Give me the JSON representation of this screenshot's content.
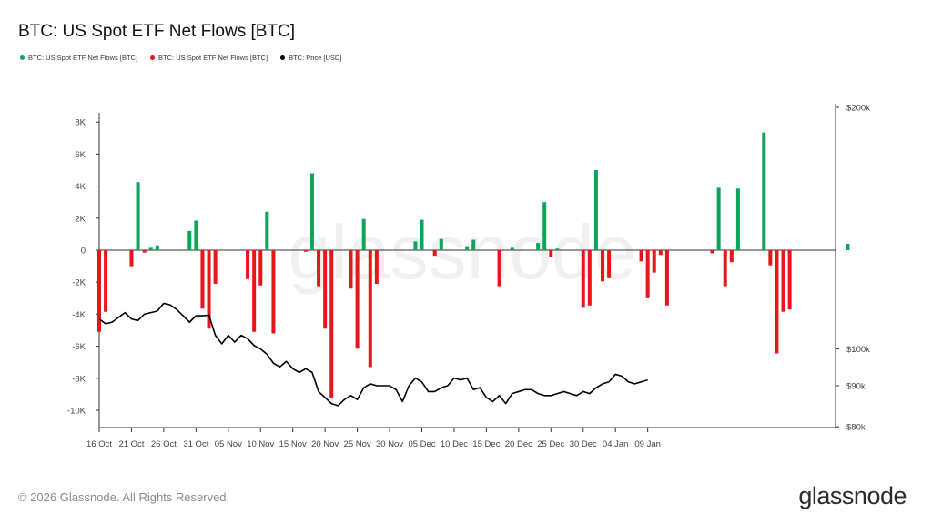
{
  "title": "BTC: US Spot ETF Net Flows [BTC]",
  "legend": [
    {
      "label": "BTC: US Spot ETF Net Flows [BTC]",
      "color": "#0fa35b"
    },
    {
      "label": "BTC: US Spot ETF Net Flows [BTC]",
      "color": "#e8161a"
    },
    {
      "label": "BTC: Price [USD]",
      "color": "#000000"
    }
  ],
  "footer": {
    "copyright": "© 2026 Glassnode. All Rights Reserved.",
    "brand": "glassnode"
  },
  "watermark": "glassnode",
  "colors": {
    "positive": "#0fa35b",
    "negative": "#e8161a",
    "price": "#000000",
    "axis": "#333333"
  },
  "chart_data": {
    "type": "bar",
    "title": "BTC: US Spot ETF Net Flows [BTC]",
    "x_ticks": [
      "16 Oct",
      "21 Oct",
      "26 Oct",
      "31 Oct",
      "05 Nov",
      "10 Nov",
      "15 Nov",
      "20 Nov",
      "25 Nov",
      "30 Nov",
      "05 Dec",
      "10 Dec",
      "15 Dec",
      "20 Dec",
      "25 Dec",
      "30 Dec",
      "04 Jan",
      "09 Jan"
    ],
    "y_left": {
      "ticks": [
        -10000,
        -8000,
        -6000,
        -4000,
        -2000,
        0,
        2000,
        4000,
        6000,
        8000
      ],
      "tick_labels": [
        "-10K",
        "-8K",
        "-6K",
        "-4K",
        "-2K",
        "0",
        "2K",
        "4K",
        "6K",
        "8K"
      ],
      "range": [
        -10500,
        8500
      ]
    },
    "y_right": {
      "scale": "log",
      "ticks": [
        80000,
        90000,
        100000,
        200000
      ],
      "tick_labels": [
        "$80k",
        "$90k",
        "$100k",
        "$200k"
      ],
      "range": [
        80000,
        200000
      ]
    },
    "flows_start_day": 0,
    "flows": [
      -5100,
      -3850,
      null,
      null,
      null,
      -1000,
      4250,
      -150,
      150,
      300,
      null,
      null,
      null,
      null,
      1200,
      1850,
      -3650,
      -4900,
      -2100,
      null,
      null,
      null,
      null,
      -1800,
      -5100,
      -2200,
      2400,
      -5200,
      null,
      null,
      null,
      null,
      -100,
      4800,
      -2250,
      -4900,
      -9200,
      null,
      null,
      -2400,
      -6150,
      1950,
      -7300,
      -2100,
      null,
      null,
      null,
      null,
      null,
      550,
      1900,
      null,
      -350,
      700,
      null,
      null,
      null,
      250,
      650,
      null,
      null,
      null,
      -2250,
      null,
      150,
      null,
      null,
      null,
      450,
      3000,
      -400,
      100,
      null,
      null,
      null,
      -3600,
      -3450,
      5000,
      -1950,
      -1750,
      null,
      null,
      null,
      null,
      -700,
      -3000,
      -1400,
      -300,
      -3450,
      null,
      null,
      null,
      null,
      null,
      null,
      -200,
      3900,
      -2250,
      -750,
      3850,
      null,
      null,
      null,
      7350,
      -950,
      -6450,
      -3850,
      -3700,
      null,
      null,
      null,
      null,
      null,
      null,
      null,
      null,
      400
    ],
    "price_start_day": 0,
    "price": [
      109000,
      107500,
      108000,
      109500,
      111000,
      109000,
      108500,
      110500,
      111000,
      111500,
      114000,
      113500,
      112000,
      110000,
      108000,
      110000,
      110000,
      110200,
      104000,
      101500,
      104000,
      102000,
      104000,
      103000,
      101000,
      100000,
      98500,
      96000,
      95000,
      96500,
      94500,
      93500,
      94500,
      93500,
      88500,
      87000,
      85500,
      85000,
      86500,
      87500,
      86500,
      89500,
      90500,
      90000,
      90000,
      90000,
      89000,
      86000,
      90000,
      92000,
      91000,
      88500,
      88500,
      89500,
      90000,
      92000,
      91500,
      92000,
      89000,
      89500,
      87000,
      86000,
      87500,
      85500,
      88000,
      88500,
      89000,
      89000,
      88000,
      87500,
      87500,
      88000,
      88500,
      88000,
      87500,
      88500,
      88000,
      89500,
      90500,
      91000,
      93000,
      92500,
      91000,
      90500,
      91000,
      91500
    ]
  }
}
